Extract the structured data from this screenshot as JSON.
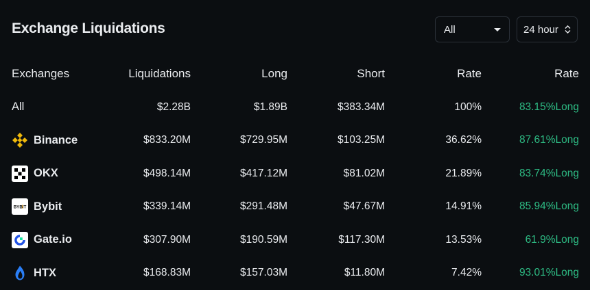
{
  "title": "Exchange Liquidations",
  "controls": {
    "exchange_select": "All",
    "time_select": "24 hour"
  },
  "columns": [
    "Exchanges",
    "Liquidations",
    "Long",
    "Short",
    "Rate",
    "Rate"
  ],
  "rows": [
    {
      "exchange": "All",
      "logo": "",
      "liquidations": "$2.28B",
      "long": "$1.89B",
      "short": "$383.34M",
      "rate": "100%",
      "long_rate": "83.15%Long"
    },
    {
      "exchange": "Binance",
      "logo": "binance-icon",
      "liquidations": "$833.20M",
      "long": "$729.95M",
      "short": "$103.25M",
      "rate": "36.62%",
      "long_rate": "87.61%Long"
    },
    {
      "exchange": "OKX",
      "logo": "okx-icon",
      "liquidations": "$498.14M",
      "long": "$417.12M",
      "short": "$81.02M",
      "rate": "21.89%",
      "long_rate": "83.74%Long"
    },
    {
      "exchange": "Bybit",
      "logo": "bybit-icon",
      "liquidations": "$339.14M",
      "long": "$291.48M",
      "short": "$47.67M",
      "rate": "14.91%",
      "long_rate": "85.94%Long"
    },
    {
      "exchange": "Gate.io",
      "logo": "gateio-icon",
      "liquidations": "$307.90M",
      "long": "$190.59M",
      "short": "$117.30M",
      "rate": "13.53%",
      "long_rate": "61.9%Long"
    },
    {
      "exchange": "HTX",
      "logo": "htx-icon",
      "liquidations": "$168.83M",
      "long": "$157.03M",
      "short": "$11.80M",
      "rate": "7.42%",
      "long_rate": "93.01%Long"
    }
  ],
  "logo_texts": {
    "bybit": "BYBIT"
  },
  "colors": {
    "background": "#0b0e11",
    "positive": "#2ebd85",
    "binance": "#f0b90b",
    "gate": "#2354e6",
    "htx": "#2a7ef6"
  }
}
